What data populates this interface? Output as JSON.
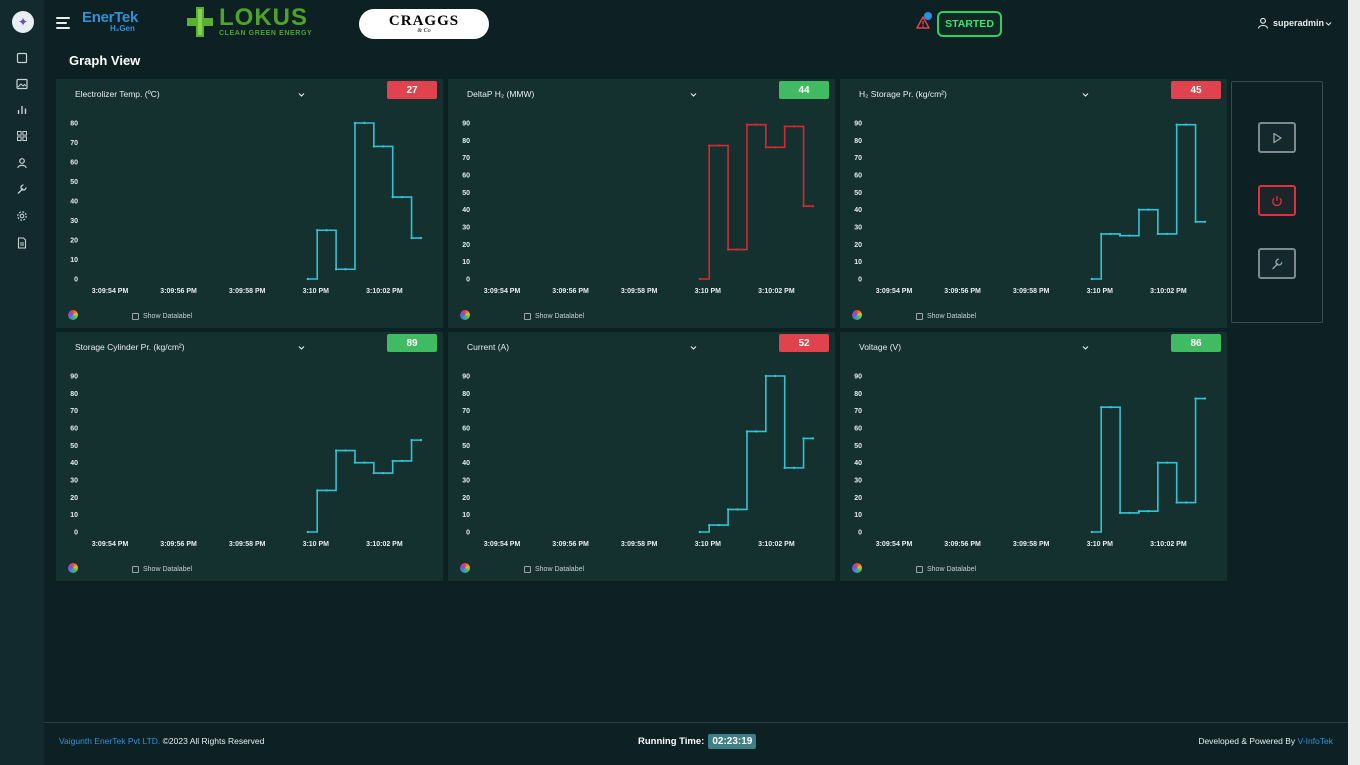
{
  "header": {
    "brand_name": "EnerTek",
    "brand_sub": "H₂Gen",
    "partner_name": "LOKUS",
    "partner_tagline": "CLEAN GREEN ENERGY",
    "partner2_name": "CRAGGS",
    "partner2_sub": "& Co",
    "status_label": "STARTED",
    "username": "superadmin"
  },
  "page": {
    "title": "Graph View"
  },
  "sidebar": {
    "icons": [
      "square-icon",
      "image-icon",
      "bar-chart-icon",
      "grid-icon",
      "user-icon",
      "wrench-icon",
      "gear-icon",
      "document-icon"
    ]
  },
  "panels": [
    {
      "title": "Electrolizer Temp. (ºC)",
      "value": "27",
      "status": "red",
      "datalabel": "Show Datalabel"
    },
    {
      "title": "DeltaP H₂ (MMW)",
      "value": "44",
      "status": "green",
      "datalabel": "Show Datalabel"
    },
    {
      "title": "H₂ Storage Pr. (kg/cm²)",
      "value": "45",
      "status": "red",
      "datalabel": "Show Datalabel"
    },
    {
      "title": "Storage Cylinder Pr. (kg/cm²)",
      "value": "89",
      "status": "green",
      "datalabel": "Show Datalabel"
    },
    {
      "title": "Current (A)",
      "value": "52",
      "status": "red",
      "datalabel": "Show Datalabel"
    },
    {
      "title": "Voltage (V)",
      "value": "86",
      "status": "green",
      "datalabel": "Show Datalabel"
    }
  ],
  "chart_data": [
    {
      "type": "line",
      "step": true,
      "color": "#33c3d6",
      "x_tick_labels": [
        "3:09:54 PM",
        "3:09:56 PM",
        "3:09:58 PM",
        "3:10 PM",
        "3:10:02 PM"
      ],
      "y_ticks": [
        0,
        10,
        20,
        30,
        40,
        50,
        60,
        70,
        80
      ],
      "ylim": [
        0,
        80
      ],
      "x": [
        0,
        0.25,
        0.5,
        0.75,
        1,
        1.25,
        1.5,
        1.75,
        2,
        2.25,
        2.5,
        2.75,
        3
      ],
      "values": [
        0,
        25,
        25,
        5,
        5,
        80,
        80,
        68,
        68,
        42,
        42,
        21,
        21
      ]
    },
    {
      "type": "line",
      "step": true,
      "color": "#d42a33",
      "x_tick_labels": [
        "3:09:54 PM",
        "3:09:56 PM",
        "3:09:58 PM",
        "3:10 PM",
        "3:10:02 PM"
      ],
      "y_ticks": [
        0,
        10,
        20,
        30,
        40,
        50,
        60,
        70,
        80,
        90
      ],
      "ylim": [
        0,
        90
      ],
      "x": [
        0,
        0.25,
        0.5,
        0.75,
        1,
        1.25,
        1.5,
        1.75,
        2,
        2.25,
        2.5,
        2.75,
        3
      ],
      "values": [
        0,
        77,
        77,
        17,
        17,
        89,
        89,
        76,
        76,
        88,
        88,
        42,
        42
      ]
    },
    {
      "type": "line",
      "step": true,
      "color": "#33c3d6",
      "x_tick_labels": [
        "3:09:54 PM",
        "3:09:56 PM",
        "3:09:58 PM",
        "3:10 PM",
        "3:10:02 PM"
      ],
      "y_ticks": [
        0,
        10,
        20,
        30,
        40,
        50,
        60,
        70,
        80,
        90
      ],
      "ylim": [
        0,
        90
      ],
      "x": [
        0,
        0.25,
        0.5,
        0.75,
        1,
        1.25,
        1.5,
        1.75,
        2,
        2.25,
        2.5,
        2.75,
        3
      ],
      "values": [
        0,
        26,
        26,
        25,
        25,
        40,
        40,
        26,
        26,
        89,
        89,
        33,
        33
      ]
    },
    {
      "type": "line",
      "step": true,
      "color": "#33c3d6",
      "x_tick_labels": [
        "3:09:54 PM",
        "3:09:56 PM",
        "3:09:58 PM",
        "3:10 PM",
        "3:10:02 PM"
      ],
      "y_ticks": [
        0,
        10,
        20,
        30,
        40,
        50,
        60,
        70,
        80,
        90
      ],
      "ylim": [
        0,
        90
      ],
      "x": [
        0,
        0.25,
        0.5,
        0.75,
        1,
        1.25,
        1.5,
        1.75,
        2,
        2.25,
        2.5,
        2.75,
        3
      ],
      "values": [
        0,
        24,
        24,
        47,
        47,
        40,
        40,
        34,
        34,
        41,
        41,
        53,
        53
      ]
    },
    {
      "type": "line",
      "step": true,
      "color": "#33c3d6",
      "x_tick_labels": [
        "3:09:54 PM",
        "3:09:56 PM",
        "3:09:58 PM",
        "3:10 PM",
        "3:10:02 PM"
      ],
      "y_ticks": [
        0,
        10,
        20,
        30,
        40,
        50,
        60,
        70,
        80,
        90
      ],
      "ylim": [
        0,
        90
      ],
      "x": [
        0,
        0.25,
        0.5,
        0.75,
        1,
        1.25,
        1.5,
        1.75,
        2,
        2.25,
        2.5,
        2.75,
        3
      ],
      "values": [
        0,
        4,
        4,
        13,
        13,
        58,
        58,
        90,
        90,
        37,
        37,
        54,
        54
      ]
    },
    {
      "type": "line",
      "step": true,
      "color": "#33c3d6",
      "x_tick_labels": [
        "3:09:54 PM",
        "3:09:56 PM",
        "3:09:58 PM",
        "3:10 PM",
        "3:10:02 PM"
      ],
      "y_ticks": [
        0,
        10,
        20,
        30,
        40,
        50,
        60,
        70,
        80,
        90
      ],
      "ylim": [
        0,
        90
      ],
      "x": [
        0,
        0.25,
        0.5,
        0.75,
        1,
        1.25,
        1.5,
        1.75,
        2,
        2.25,
        2.5,
        2.75,
        3
      ],
      "values": [
        0,
        72,
        72,
        11,
        11,
        12,
        12,
        40,
        40,
        17,
        17,
        77,
        77
      ]
    }
  ],
  "footer": {
    "company": "Vaigunth EnerTek Pvt LTD.",
    "copyright": "©2023 All Rights Reserved",
    "running_label": "Running Time:",
    "running_value": "02:23:19",
    "powered_label": "Developed & Powered By",
    "powered_company": "V-InfoTek"
  },
  "colors": {
    "started": "#2fcf62",
    "alarm_red": "#e0434d",
    "ok_green": "#41bb62",
    "series": "#33c3d6",
    "accent": "#2f92d8"
  }
}
